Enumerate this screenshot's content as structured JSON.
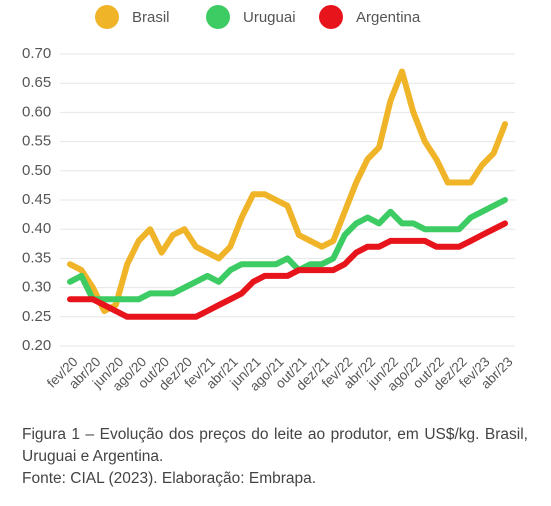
{
  "chart_data": {
    "type": "line",
    "categories": [
      "fev/20",
      null,
      "abr/20",
      null,
      "jun/20",
      null,
      "ago/20",
      null,
      "out/20",
      null,
      "dez/20",
      null,
      "fev/21",
      null,
      "abr/21",
      null,
      "jun/21",
      null,
      "ago/21",
      null,
      "out/21",
      null,
      "dez/21",
      null,
      "fev/22",
      null,
      "abr/22",
      null,
      "jun/22",
      null,
      "ago/22",
      null,
      "out/22",
      null,
      "dez/22",
      null,
      "fev/23",
      null,
      "abr/23"
    ],
    "series": [
      {
        "name": "Brasil",
        "color": "#f0b429",
        "values": [
          0.34,
          0.33,
          0.3,
          0.26,
          0.27,
          0.34,
          0.38,
          0.4,
          0.36,
          0.39,
          0.4,
          0.37,
          0.36,
          0.35,
          0.37,
          0.42,
          0.46,
          0.46,
          0.45,
          0.44,
          0.39,
          0.38,
          0.37,
          0.38,
          0.43,
          0.48,
          0.52,
          0.54,
          0.62,
          0.67,
          0.6,
          0.55,
          0.52,
          0.48,
          0.48,
          0.48,
          0.51,
          0.53,
          0.58
        ]
      },
      {
        "name": "Uruguai",
        "color": "#3dcc64",
        "values": [
          0.31,
          0.32,
          0.28,
          0.28,
          0.28,
          0.28,
          0.28,
          0.29,
          0.29,
          0.29,
          0.3,
          0.31,
          0.32,
          0.31,
          0.33,
          0.34,
          0.34,
          0.34,
          0.34,
          0.35,
          0.33,
          0.34,
          0.34,
          0.35,
          0.39,
          0.41,
          0.42,
          0.41,
          0.43,
          0.41,
          0.41,
          0.4,
          0.4,
          0.4,
          0.4,
          0.42,
          0.43,
          0.44,
          0.45
        ]
      },
      {
        "name": "Argentina",
        "color": "#e8141b",
        "values": [
          0.28,
          0.28,
          0.28,
          0.27,
          0.26,
          0.25,
          0.25,
          0.25,
          0.25,
          0.25,
          0.25,
          0.25,
          0.26,
          0.27,
          0.28,
          0.29,
          0.31,
          0.32,
          0.32,
          0.32,
          0.33,
          0.33,
          0.33,
          0.33,
          0.34,
          0.36,
          0.37,
          0.37,
          0.38,
          0.38,
          0.38,
          0.38,
          0.37,
          0.37,
          0.37,
          0.38,
          0.39,
          0.4,
          0.41
        ]
      }
    ],
    "ylim": [
      0.2,
      0.7
    ],
    "yticks": [
      {
        "value": 0.2,
        "label": "0.20"
      },
      {
        "value": 0.25,
        "label": "0.25"
      },
      {
        "value": 0.3,
        "label": "0.30"
      },
      {
        "value": 0.35,
        "label": "0.35"
      },
      {
        "value": 0.4,
        "label": "0.40"
      },
      {
        "value": 0.45,
        "label": "0.45"
      },
      {
        "value": 0.5,
        "label": "0.50"
      },
      {
        "value": 0.55,
        "label": "0.55"
      },
      {
        "value": 0.6,
        "label": "0.60"
      },
      {
        "value": 0.65,
        "label": "0.65"
      },
      {
        "value": 0.7,
        "label": "0.70"
      }
    ],
    "grid": true,
    "legend": "top",
    "caption": [
      "Figura 1 – Evolução dos preços do leite ao produtor, em US$/kg. Brasil, Uruguai e Argentina.",
      "Fonte: CIAL (2023). Elaboração: Embrapa."
    ]
  }
}
